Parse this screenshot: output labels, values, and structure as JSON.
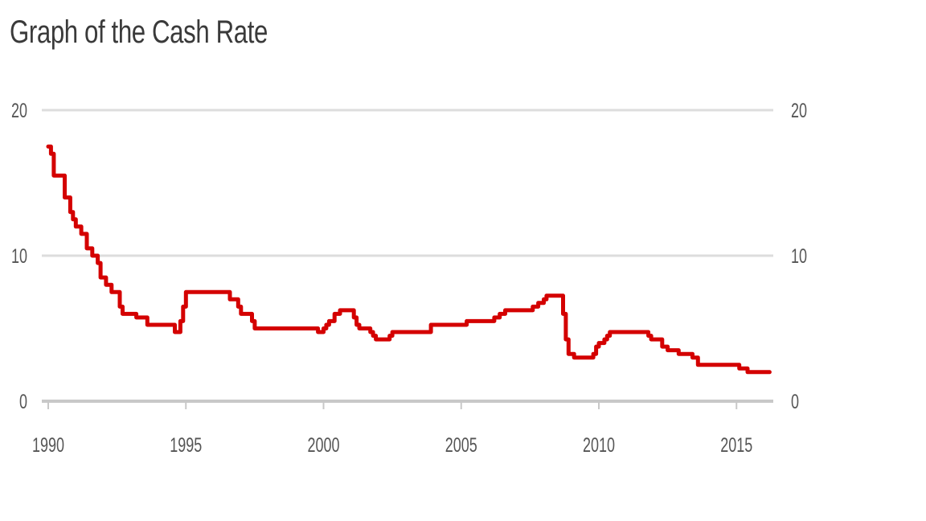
{
  "chart_data": {
    "type": "line",
    "title": "Graph of the Cash Rate",
    "xlabel": "",
    "ylabel": "",
    "xlim": [
      1990,
      2016.2
    ],
    "ylim": [
      0,
      20
    ],
    "x_ticks": [
      1990,
      1995,
      2000,
      2005,
      2010,
      2015
    ],
    "x_tick_labels": [
      "1990",
      "1995",
      "2000",
      "2005",
      "2010",
      "2015"
    ],
    "y_ticks": [
      0,
      10,
      20
    ],
    "y_tick_labels": [
      "0",
      "10",
      "20"
    ],
    "right_axis_labels": true,
    "grid": "horizontal",
    "line_color": "#d40000",
    "series": [
      {
        "step": true,
        "x": [
          1990.0,
          1990.1,
          1990.2,
          1990.3,
          1990.6,
          1990.6,
          1990.8,
          1990.9,
          1991.0,
          1991.1,
          1991.2,
          1991.4,
          1991.6,
          1991.8,
          1991.9,
          1992.1,
          1992.3,
          1992.4,
          1992.6,
          1992.7,
          1993.2,
          1993.6,
          1994.6,
          1994.8,
          1994.9,
          1995.0,
          1996.5,
          1996.6,
          1996.9,
          1997.0,
          1997.4,
          1997.5,
          1998.9,
          1999.8,
          2000.0,
          2000.1,
          2000.2,
          2000.4,
          2000.6,
          2001.0,
          2001.1,
          2001.2,
          2001.3,
          2001.4,
          2001.7,
          2001.8,
          2001.9,
          2002.4,
          2002.5,
          2003.8,
          2003.9,
          2005.2,
          2006.2,
          2006.4,
          2006.6,
          2007.6,
          2007.8,
          2008.0,
          2008.1,
          2008.2,
          2008.3,
          2008.7,
          2008.8,
          2008.9,
          2009.1,
          2009.8,
          2009.9,
          2010.0,
          2010.2,
          2010.3,
          2010.4,
          2010.9,
          2011.8,
          2011.9,
          2012.3,
          2012.5,
          2012.9,
          2013.4,
          2013.6,
          2015.1,
          2015.4,
          2016.2
        ],
        "values": [
          17.5,
          17.0,
          15.5,
          15.5,
          14.0,
          14.0,
          13.0,
          12.5,
          12.0,
          12.0,
          11.5,
          10.5,
          10.0,
          9.5,
          8.5,
          8.0,
          7.5,
          7.5,
          6.5,
          6.0,
          5.75,
          5.25,
          4.75,
          5.5,
          6.5,
          7.5,
          7.5,
          7.0,
          6.5,
          6.0,
          5.5,
          5.0,
          5.0,
          4.75,
          5.0,
          5.25,
          5.5,
          6.0,
          6.25,
          6.25,
          5.75,
          5.25,
          5.0,
          5.0,
          4.75,
          4.5,
          4.25,
          4.5,
          4.75,
          4.75,
          5.25,
          5.5,
          5.75,
          6.0,
          6.25,
          6.5,
          6.75,
          7.0,
          7.25,
          7.25,
          7.25,
          6.0,
          4.25,
          3.25,
          3.0,
          3.25,
          3.75,
          4.0,
          4.25,
          4.5,
          4.75,
          4.75,
          4.5,
          4.25,
          3.75,
          3.5,
          3.25,
          3.0,
          2.5,
          2.25,
          2.0,
          2.0
        ]
      }
    ]
  }
}
